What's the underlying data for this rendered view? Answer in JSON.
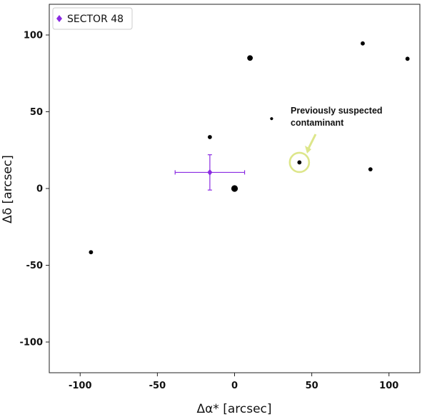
{
  "chart_data": {
    "type": "scatter",
    "xlabel": "Δα* [arcsec]",
    "ylabel": "Δδ [arcsec]",
    "xlim": [
      -120,
      120
    ],
    "ylim": [
      -120,
      120
    ],
    "xticks": [
      -100,
      -50,
      0,
      50,
      100
    ],
    "yticks": [
      -100,
      -50,
      0,
      50,
      100
    ],
    "grid": false,
    "legend_position": "top-left",
    "series": [
      {
        "name": "SECTOR 48",
        "marker": "diamond",
        "color": "#8a2be2",
        "points": [
          {
            "x": -16,
            "y": 10.5,
            "xerr": 22.5,
            "yerr": 11.5
          }
        ]
      }
    ],
    "stars": [
      {
        "x": 0,
        "y": 0,
        "size": "large"
      },
      {
        "x": 10,
        "y": 85,
        "size": "medium"
      },
      {
        "x": -16,
        "y": 33.5,
        "size": "small"
      },
      {
        "x": 24,
        "y": 45.5,
        "size": "tiny"
      },
      {
        "x": 42,
        "y": 17,
        "size": "small"
      },
      {
        "x": 83,
        "y": 94.5,
        "size": "small"
      },
      {
        "x": 112,
        "y": 84.5,
        "size": "small"
      },
      {
        "x": 88,
        "y": 12.5,
        "size": "small"
      },
      {
        "x": -93,
        "y": -41.5,
        "size": "small"
      }
    ],
    "annotation": {
      "lines": [
        "Previously suspected",
        "contaminant"
      ],
      "target": {
        "x": 42,
        "y": 17
      },
      "circle_color": "#dde68a",
      "arrow_color": "#dde68a"
    }
  }
}
